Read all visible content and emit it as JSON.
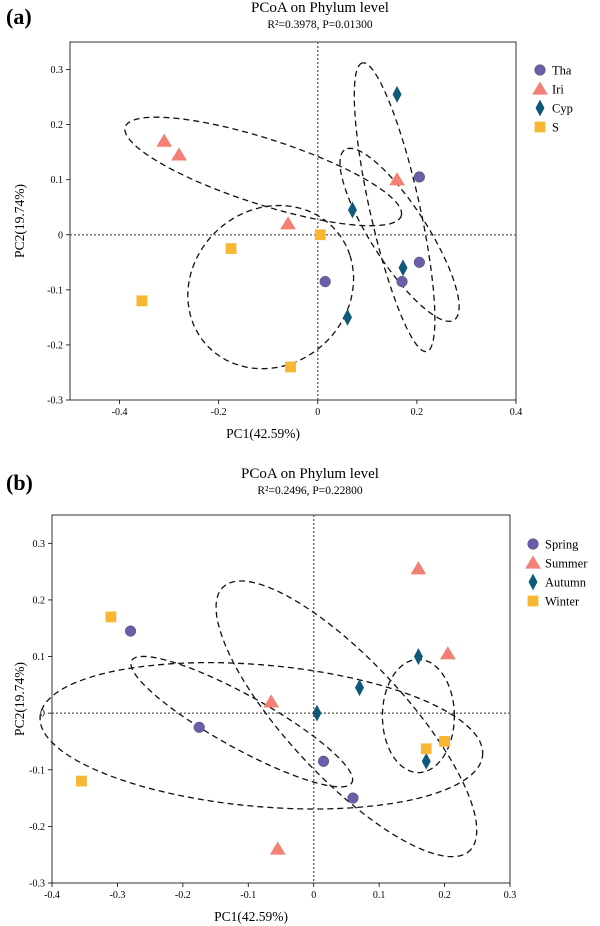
{
  "chart_data": [
    {
      "type": "scatter",
      "panel_label": "(a)",
      "title": "PCoA  on  Phylum  level",
      "stat": "R²=0.3978,  P=0.01300",
      "xlabel": "PC1(42.59%)",
      "ylabel": "PC2(19.74%)",
      "xlim": [
        -0.5,
        0.4
      ],
      "ylim": [
        -0.3,
        0.35
      ],
      "xticks": [
        -0.4,
        -0.2,
        0,
        0.2,
        0.4
      ],
      "yticks": [
        -0.3,
        -0.2,
        -0.1,
        0,
        0.1,
        0.2,
        0.3
      ],
      "xtick_labels": [
        "-0.4",
        "-0.2",
        "0",
        "0.2",
        "0.4"
      ],
      "ytick_labels": [
        "-0.3",
        "-0.2",
        "-0.1",
        "0",
        "0.1",
        "0.2",
        "0.3"
      ],
      "legend_position": "top-right outside",
      "series": [
        {
          "name": "Tha",
          "marker": "circle",
          "color": "#6A5EA8",
          "x": [
            0.205,
            0.205,
            0.17,
            0.015
          ],
          "y": [
            0.105,
            -0.05,
            -0.085,
            -0.085
          ]
        },
        {
          "name": "Iri",
          "marker": "triangle",
          "color": "#F28074",
          "x": [
            -0.31,
            -0.28,
            -0.06,
            0.16
          ],
          "y": [
            0.17,
            0.145,
            0.02,
            0.1
          ]
        },
        {
          "name": "Cyp",
          "marker": "diamond",
          "color": "#0E5A78",
          "x": [
            0.16,
            0.07,
            0.172,
            0.06
          ],
          "y": [
            0.255,
            0.045,
            -0.06,
            -0.15
          ]
        },
        {
          "name": "S",
          "marker": "square",
          "color": "#F7B733",
          "x": [
            0.005,
            -0.175,
            -0.355,
            -0.055
          ],
          "y": [
            0.0,
            -0.025,
            -0.12,
            -0.24
          ]
        }
      ],
      "ellipses": [
        {
          "cx": -0.11,
          "cy": 0.115,
          "rx": 0.29,
          "ry": 0.06,
          "angle": -16
        },
        {
          "cx": 0.155,
          "cy": 0.05,
          "rx": 0.27,
          "ry": 0.05,
          "angle": 104
        },
        {
          "cx": 0.165,
          "cy": 0.0,
          "rx": 0.19,
          "ry": 0.055,
          "angle": 126
        },
        {
          "cx": -0.095,
          "cy": -0.095,
          "rx": 0.17,
          "ry": 0.145,
          "angle": 20
        }
      ]
    },
    {
      "type": "scatter",
      "panel_label": "(b)",
      "title": "PCoA  on  Phylum  level",
      "stat": "R²=0.2496,  P=0.22800",
      "xlabel": "PC1(42.59%)",
      "ylabel": "PC2(19.74%)",
      "xlim": [
        -0.4,
        0.3
      ],
      "ylim": [
        -0.3,
        0.35
      ],
      "xticks": [
        -0.4,
        -0.3,
        -0.2,
        -0.1,
        0,
        0.1,
        0.2,
        0.3
      ],
      "yticks": [
        -0.3,
        -0.2,
        -0.1,
        0,
        0.1,
        0.2,
        0.3
      ],
      "xtick_labels": [
        "-0.4",
        "-0.3",
        "-0.2",
        "-0.1",
        "0",
        "0.1",
        "0.2",
        "0.3"
      ],
      "ytick_labels": [
        "-0.3",
        "-0.2",
        "-0.1",
        "0",
        "0.1",
        "0.2",
        "0.3"
      ],
      "legend_position": "top-right outside",
      "series": [
        {
          "name": "Spring",
          "marker": "circle",
          "color": "#6A5EA8",
          "x": [
            -0.28,
            -0.175,
            0.015,
            0.06
          ],
          "y": [
            0.145,
            -0.025,
            -0.085,
            -0.15
          ]
        },
        {
          "name": "Summer",
          "marker": "triangle",
          "color": "#F28074",
          "x": [
            0.16,
            0.205,
            -0.065,
            -0.055
          ],
          "y": [
            0.255,
            0.105,
            0.02,
            -0.24
          ]
        },
        {
          "name": "Autumn",
          "marker": "diamond",
          "color": "#0E5A78",
          "x": [
            0.16,
            0.07,
            0.005,
            0.172
          ],
          "y": [
            0.1,
            0.045,
            0.0,
            -0.085
          ]
        },
        {
          "name": "Winter",
          "marker": "square",
          "color": "#F7B733",
          "x": [
            -0.31,
            -0.355,
            0.172,
            0.2
          ],
          "y": [
            0.17,
            -0.12,
            -0.063,
            -0.05
          ]
        }
      ],
      "ellipses": [
        {
          "cx": 0.05,
          "cy": -0.01,
          "rx": 0.3,
          "ry": 0.095,
          "angle": -52
        },
        {
          "cx": -0.08,
          "cy": -0.04,
          "rx": 0.34,
          "ry": 0.125,
          "angle": -6
        },
        {
          "cx": -0.11,
          "cy": -0.015,
          "rx": 0.2,
          "ry": 0.045,
          "angle": -33
        },
        {
          "cx": 0.16,
          "cy": -0.005,
          "rx": 0.055,
          "ry": 0.1,
          "angle": 0
        }
      ]
    }
  ]
}
